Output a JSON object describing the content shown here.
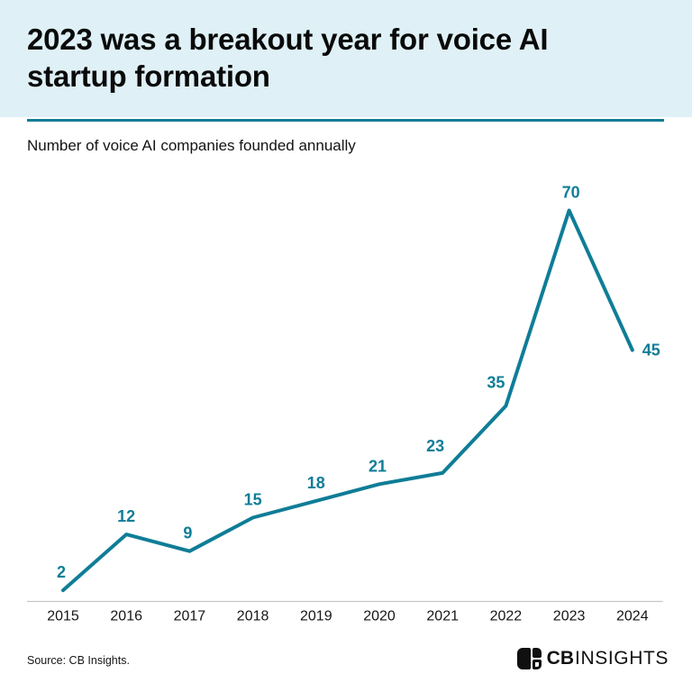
{
  "header": {
    "title": "2023 was a breakout year for voice AI startup formation",
    "subtitle": "Number of voice AI companies founded annually"
  },
  "chart_data": {
    "type": "line",
    "x": [
      2015,
      2016,
      2017,
      2018,
      2019,
      2020,
      2021,
      2022,
      2023,
      2024
    ],
    "values": [
      2,
      12,
      9,
      15,
      18,
      21,
      23,
      35,
      70,
      45
    ],
    "title": "2023 was a breakout year for voice AI startup formation",
    "subtitle": "Number of voice AI companies founded annually",
    "xlabel": "",
    "ylabel": "Number of voice AI companies founded annually",
    "ylim": [
      0,
      78
    ],
    "grid": false,
    "legend": "none",
    "data_labels": true,
    "line_color": "#0F7D97"
  },
  "footer": {
    "source": "Source: CB Insights.",
    "logo": {
      "bold": "CB",
      "light": "INSIGHTS"
    }
  },
  "colors": {
    "accent": "#0F7D97",
    "band": "#DFF1F6",
    "axis": "#C8C8C8",
    "text": "#0B0B0B"
  }
}
